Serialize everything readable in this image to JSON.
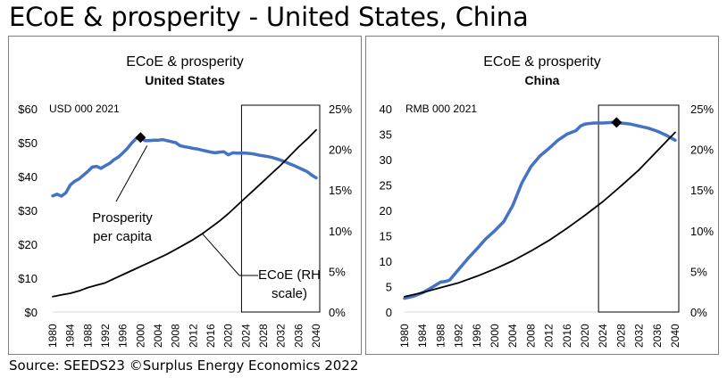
{
  "title": "ECoE & prosperity - United States, China",
  "source": "Source: SEEDS23 ©Surplus Energy Economics 2022",
  "colors": {
    "prosperity": "#4472c4",
    "ecoe": "#000000",
    "frame": "#7f7f7f"
  },
  "chart_data": [
    {
      "type": "line",
      "title": "ECoE & prosperity",
      "subtitle": "United States",
      "left_axis_unit": "USD 000 2021",
      "x_ticks": [
        "1980",
        "1984",
        "1988",
        "1992",
        "1996",
        "2000",
        "2004",
        "2008",
        "2012",
        "2016",
        "2020",
        "2024",
        "2028",
        "2032",
        "2036",
        "2040"
      ],
      "x_range": [
        1980,
        2040
      ],
      "left_ticks": [
        "$0",
        "$10",
        "$20",
        "$30",
        "$40",
        "$50",
        "$60"
      ],
      "left_range": [
        0,
        60
      ],
      "right_ticks": [
        "0%",
        "5%",
        "10%",
        "15%",
        "20%",
        "25%"
      ],
      "right_range": [
        0,
        25
      ],
      "projection_box": [
        2023,
        2040
      ],
      "marker_year": 2000,
      "annotations": [
        {
          "lines": [
            "Prosperity",
            "per capita"
          ],
          "series": "prosperity"
        },
        {
          "lines": [
            "ECoE (RH",
            "scale)"
          ],
          "series": "ecoe"
        }
      ],
      "series": [
        {
          "key": "prosperity",
          "axis": "left",
          "x": [
            1980,
            1981,
            1982,
            1983,
            1984,
            1985,
            1986,
            1987,
            1988,
            1989,
            1990,
            1991,
            1992,
            1993,
            1994,
            1995,
            1996,
            1997,
            1998,
            1999,
            2000,
            2001,
            2002,
            2003,
            2004,
            2005,
            2006,
            2007,
            2008,
            2009,
            2010,
            2011,
            2012,
            2013,
            2014,
            2015,
            2016,
            2017,
            2018,
            2019,
            2020,
            2021,
            2022,
            2023,
            2024,
            2025,
            2026,
            2027,
            2028,
            2029,
            2030,
            2031,
            2032,
            2033,
            2034,
            2035,
            2036,
            2037,
            2038,
            2039,
            2040
          ],
          "values": [
            34.3,
            34.8,
            34.2,
            35.2,
            37.5,
            38.6,
            39.3,
            40.4,
            41.5,
            42.8,
            43.0,
            42.4,
            43.2,
            43.9,
            45.0,
            45.8,
            47.0,
            48.3,
            49.9,
            51.2,
            51.5,
            50.6,
            50.6,
            50.7,
            50.7,
            50.9,
            50.6,
            50.3,
            50.0,
            49.1,
            48.8,
            48.6,
            48.3,
            48.1,
            47.8,
            47.5,
            47.2,
            47.0,
            47.2,
            47.3,
            46.4,
            47.0,
            46.9,
            46.9,
            46.9,
            46.8,
            46.6,
            46.3,
            46.1,
            45.9,
            45.6,
            45.2,
            44.8,
            44.3,
            43.7,
            43.2,
            42.6,
            42.0,
            41.4,
            40.4,
            39.6
          ]
        },
        {
          "key": "ecoe",
          "axis": "right",
          "x": [
            1980,
            1982,
            1984,
            1986,
            1988,
            1990,
            1992,
            1994,
            1996,
            1998,
            2000,
            2002,
            2004,
            2006,
            2008,
            2010,
            2012,
            2014,
            2016,
            2018,
            2020,
            2022,
            2024,
            2026,
            2028,
            2030,
            2032,
            2034,
            2036,
            2038,
            2040
          ],
          "values": [
            1.9,
            2.1,
            2.3,
            2.6,
            3.0,
            3.3,
            3.6,
            4.1,
            4.6,
            5.1,
            5.6,
            6.1,
            6.6,
            7.1,
            7.7,
            8.3,
            8.9,
            9.6,
            10.4,
            11.2,
            12.1,
            13.1,
            14.1,
            15.1,
            16.1,
            17.1,
            18.1,
            19.2,
            20.3,
            21.3,
            22.4
          ]
        }
      ]
    },
    {
      "type": "line",
      "title": "ECoE & prosperity",
      "subtitle": "China",
      "left_axis_unit": "RMB 000 2021",
      "x_ticks": [
        "1980",
        "1984",
        "1988",
        "1992",
        "1996",
        "2000",
        "2004",
        "2008",
        "2012",
        "2016",
        "2020",
        "2024",
        "2028",
        "2032",
        "2036",
        "2040"
      ],
      "x_range": [
        1980,
        2040
      ],
      "left_ticks": [
        "0",
        "5",
        "10",
        "15",
        "20",
        "25",
        "30",
        "35",
        "40"
      ],
      "left_range": [
        0,
        40
      ],
      "right_ticks": [
        "0%",
        "5%",
        "10%",
        "15%",
        "20%",
        "25%"
      ],
      "right_range": [
        0,
        25
      ],
      "projection_box": [
        2023,
        2040
      ],
      "marker_year": 2027,
      "series": [
        {
          "key": "prosperity",
          "axis": "left",
          "x": [
            1980,
            1982,
            1984,
            1986,
            1988,
            1989,
            1990,
            1992,
            1994,
            1996,
            1998,
            2000,
            2002,
            2004,
            2006,
            2008,
            2010,
            2012,
            2014,
            2016,
            2018,
            2019,
            2020,
            2022,
            2024,
            2026,
            2027,
            2028,
            2030,
            2032,
            2034,
            2036,
            2038,
            2040
          ],
          "values": [
            2.7,
            3.1,
            3.8,
            4.8,
            5.9,
            6.0,
            6.3,
            8.4,
            10.5,
            12.4,
            14.4,
            16.0,
            17.8,
            21.0,
            25.4,
            28.6,
            30.7,
            32.2,
            33.8,
            35.0,
            35.7,
            36.6,
            37.0,
            37.2,
            37.2,
            37.3,
            37.3,
            37.2,
            37.0,
            36.6,
            36.2,
            35.6,
            34.8,
            33.8
          ]
        },
        {
          "key": "ecoe",
          "axis": "right",
          "x": [
            1980,
            1984,
            1988,
            1992,
            1996,
            2000,
            2004,
            2008,
            2012,
            2016,
            2020,
            2024,
            2028,
            2032,
            2036,
            2040
          ],
          "values": [
            1.9,
            2.4,
            3.0,
            3.6,
            4.4,
            5.3,
            6.3,
            7.5,
            8.8,
            10.3,
            11.9,
            13.6,
            15.5,
            17.5,
            19.8,
            22.1
          ]
        }
      ]
    }
  ]
}
